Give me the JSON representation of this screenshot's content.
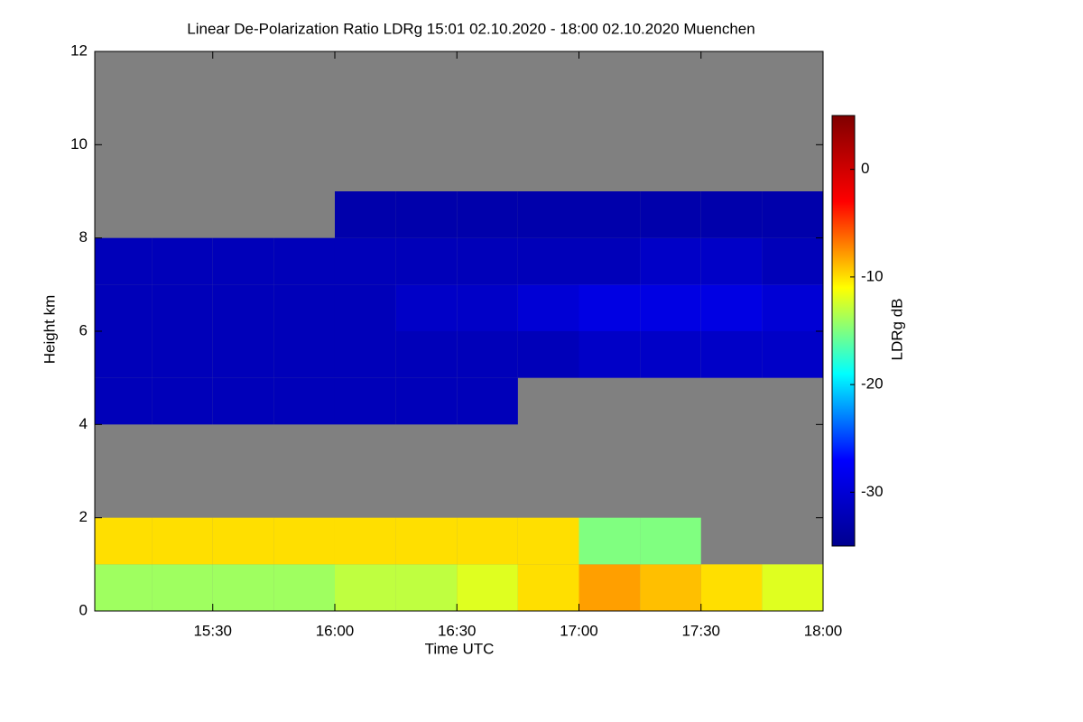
{
  "chart_data": {
    "type": "heatmap",
    "title": "Linear De-Polarization Ratio LDRg   15:01 02.10.2020 - 18:00 02.10.2020 Muenchen",
    "x_label": "Time UTC",
    "y_label": "Height km",
    "colorbar_label": "LDRg dB",
    "x_bins": [
      "15:01",
      "15:15",
      "15:30",
      "15:45",
      "16:00",
      "16:15",
      "16:30",
      "16:45",
      "17:00",
      "17:15",
      "17:30",
      "17:45",
      "18:00"
    ],
    "y_bins": [
      0,
      1,
      2,
      3,
      4,
      5,
      6,
      7,
      8,
      9,
      10,
      11,
      12
    ],
    "values": [
      [
        -14,
        -14,
        -14,
        -14,
        -13,
        -13,
        -12,
        -10,
        -8,
        -9,
        -10,
        -12
      ],
      [
        -10,
        -10,
        -10,
        -10,
        -10,
        -10,
        -10,
        -10,
        -15,
        -15,
        null,
        null
      ],
      [
        null,
        null,
        null,
        null,
        null,
        null,
        null,
        null,
        null,
        null,
        null,
        null
      ],
      [
        null,
        null,
        null,
        null,
        null,
        null,
        null,
        null,
        null,
        null,
        null,
        null
      ],
      [
        -32,
        -32,
        -32,
        -32,
        -32,
        -32,
        -32,
        null,
        null,
        null,
        null,
        null
      ],
      [
        -32,
        -32,
        -32,
        -32,
        -32,
        -32,
        -32,
        -32,
        -31,
        -31,
        -31,
        -31
      ],
      [
        -32,
        -32,
        -32,
        -32,
        -32,
        -31,
        -31,
        -30,
        -29,
        -29,
        -29,
        -30
      ],
      [
        -32,
        -32,
        -32,
        -32,
        -32,
        -32,
        -32,
        -32,
        -32,
        -31,
        -31,
        -32
      ],
      [
        null,
        null,
        null,
        null,
        -33,
        -33,
        -33,
        -33,
        -33,
        -33,
        -33,
        -33
      ],
      [
        null,
        null,
        null,
        null,
        null,
        null,
        null,
        null,
        null,
        null,
        null,
        null
      ],
      [
        null,
        null,
        null,
        null,
        null,
        null,
        null,
        null,
        null,
        null,
        null,
        null
      ],
      [
        null,
        null,
        null,
        null,
        null,
        null,
        null,
        null,
        null,
        null,
        null,
        null
      ]
    ],
    "xlim": [
      "15:01",
      "18:00"
    ],
    "xticks": [
      "15:30",
      "16:00",
      "16:30",
      "17:00",
      "17:30",
      "18:00"
    ],
    "ylim": [
      0,
      12
    ],
    "yticks": [
      0,
      2,
      4,
      6,
      8,
      10,
      12
    ],
    "zlim": [
      -35,
      5
    ],
    "zticks": [
      0,
      -10,
      -20,
      -30
    ],
    "colors": [
      "#00008f",
      "#0000ff",
      "#00ffff",
      "#ffff00",
      "#ff0000",
      "#800000"
    ]
  }
}
